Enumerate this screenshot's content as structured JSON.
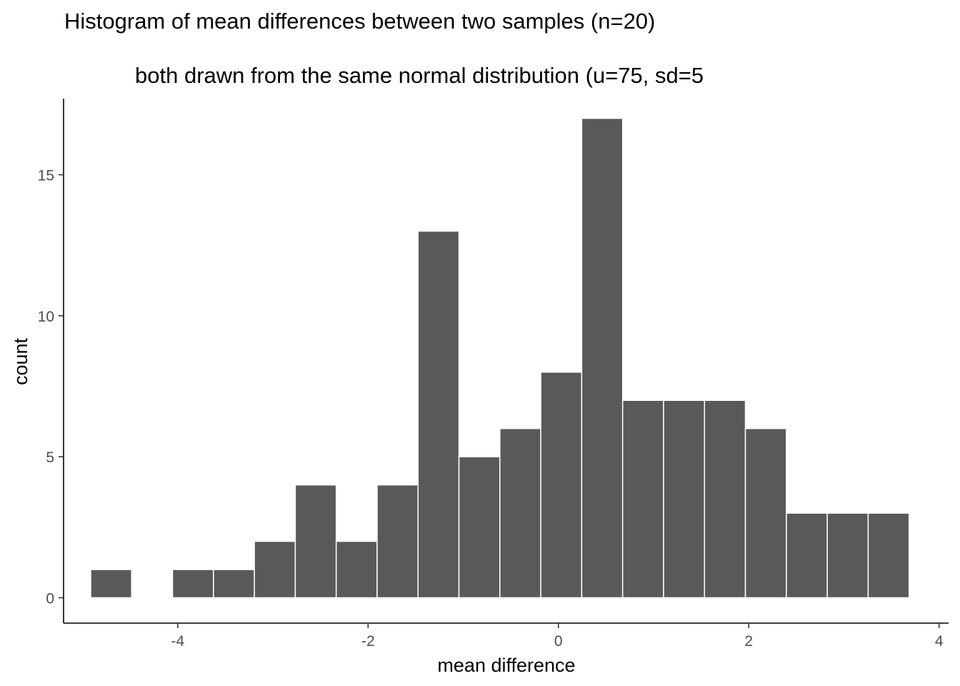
{
  "chart_data": {
    "type": "bar",
    "title": "Histogram of mean differences between two samples (n=20)",
    "subtitle": "both drawn from the same normal distribution (u=75, sd=5",
    "xlabel": "mean difference",
    "ylabel": "count",
    "xlim": [
      -5.2,
      4.1
    ],
    "ylim": [
      -0.9,
      17.7
    ],
    "x_ticks": [
      {
        "value": -4,
        "label": "-4"
      },
      {
        "value": -2,
        "label": "-2"
      },
      {
        "value": 0,
        "label": "0"
      },
      {
        "value": 2,
        "label": "2"
      },
      {
        "value": 4,
        "label": "4"
      }
    ],
    "y_ticks": [
      {
        "value": 0,
        "label": "0"
      },
      {
        "value": 5,
        "label": "5"
      },
      {
        "value": 10,
        "label": "10"
      },
      {
        "value": 15,
        "label": "15"
      }
    ],
    "bin_width": 0.43,
    "bins": [
      {
        "x": -4.7,
        "count": 1
      },
      {
        "x": -4.27,
        "count": 0
      },
      {
        "x": -3.84,
        "count": 1
      },
      {
        "x": -3.41,
        "count": 1
      },
      {
        "x": -2.98,
        "count": 2
      },
      {
        "x": -2.55,
        "count": 4
      },
      {
        "x": -2.12,
        "count": 2
      },
      {
        "x": -1.69,
        "count": 4
      },
      {
        "x": -1.26,
        "count": 13
      },
      {
        "x": -0.83,
        "count": 5
      },
      {
        "x": -0.4,
        "count": 6
      },
      {
        "x": 0.03,
        "count": 8
      },
      {
        "x": 0.46,
        "count": 17
      },
      {
        "x": 0.89,
        "count": 7
      },
      {
        "x": 1.32,
        "count": 7
      },
      {
        "x": 1.75,
        "count": 7
      },
      {
        "x": 2.18,
        "count": 6
      },
      {
        "x": 2.61,
        "count": 3
      },
      {
        "x": 3.04,
        "count": 3
      },
      {
        "x": 3.47,
        "count": 3
      }
    ],
    "bar_color": "#595959",
    "bar_outline": "#ffffff",
    "grid": false,
    "legend": "none"
  }
}
